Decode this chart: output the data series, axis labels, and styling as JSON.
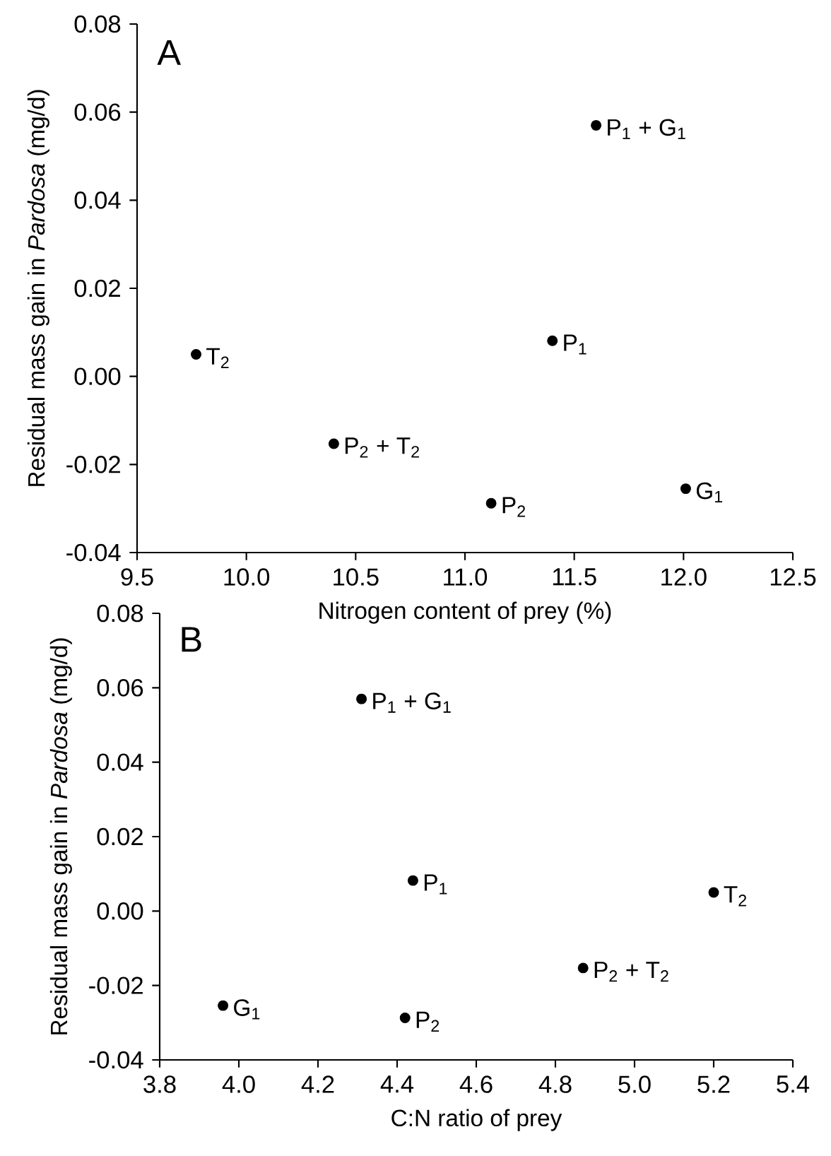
{
  "chart_data": [
    {
      "type": "scatter",
      "title": "A",
      "xlabel": "Nitrogen content of prey (%)",
      "ylabel": "Residual mass gain in *Pardosa* (mg/d)",
      "x": [
        9.77,
        10.4,
        11.12,
        11.4,
        11.6,
        12.01
      ],
      "series": [
        {
          "color": "#000000",
          "values": [
            0.005,
            -0.0153,
            -0.0288,
            0.0081,
            0.057,
            -0.0255
          ]
        }
      ],
      "marker": "circle",
      "grid": false,
      "legend": false,
      "xlim": [
        9.5,
        12.5
      ],
      "ylim": [
        -0.04,
        0.08
      ],
      "xticks": [
        {
          "value": 9.5,
          "label": "9.5"
        },
        {
          "value": 10.0,
          "label": "10.0"
        },
        {
          "value": 10.5,
          "label": "10.5"
        },
        {
          "value": 11.0,
          "label": "11.0"
        },
        {
          "value": 11.5,
          "label": "11.5"
        },
        {
          "value": 12.0,
          "label": "12.0"
        },
        {
          "value": 12.5,
          "label": "12.5"
        }
      ],
      "yticks": [
        {
          "value": -0.04,
          "label": "-0.04"
        },
        {
          "value": -0.02,
          "label": "-0.02"
        },
        {
          "value": 0.0,
          "label": "0.00"
        },
        {
          "value": 0.02,
          "label": "0.02"
        },
        {
          "value": 0.04,
          "label": "0.04"
        },
        {
          "value": 0.06,
          "label": "0.06"
        },
        {
          "value": 0.08,
          "label": "0.08"
        }
      ],
      "annotations": [
        {
          "text": "T$_{2}$",
          "x": 9.77,
          "y": 0.005
        },
        {
          "text": "P$_{2}$ + T$_{2}$",
          "x": 10.4,
          "y": -0.0153
        },
        {
          "text": "P$_{2}$",
          "x": 11.12,
          "y": -0.0288
        },
        {
          "text": "P$_{1}$",
          "x": 11.4,
          "y": 0.0081
        },
        {
          "text": "P$_{1}$ + G$_{1}$",
          "x": 11.6,
          "y": 0.057
        },
        {
          "text": "G$_{1}$",
          "x": 12.01,
          "y": -0.0255
        }
      ]
    },
    {
      "type": "scatter",
      "title": "B",
      "xlabel": "C:N ratio of prey",
      "ylabel": "Residual mass gain in *Pardosa* (mg/d)",
      "x": [
        5.2,
        4.87,
        4.42,
        4.44,
        4.31,
        3.96
      ],
      "series": [
        {
          "color": "#000000",
          "values": [
            0.005,
            -0.0153,
            -0.0287,
            0.0082,
            0.057,
            -0.0254
          ]
        }
      ],
      "marker": "circle",
      "grid": false,
      "legend": false,
      "xlim": [
        3.8,
        5.4
      ],
      "ylim": [
        -0.04,
        0.08
      ],
      "xticks": [
        {
          "value": 3.8,
          "label": "3.8"
        },
        {
          "value": 4.0,
          "label": "4.0"
        },
        {
          "value": 4.2,
          "label": "4.2"
        },
        {
          "value": 4.4,
          "label": "4.4"
        },
        {
          "value": 4.6,
          "label": "4.6"
        },
        {
          "value": 4.8,
          "label": "4.8"
        },
        {
          "value": 5.0,
          "label": "5.0"
        },
        {
          "value": 5.2,
          "label": "5.2"
        },
        {
          "value": 5.4,
          "label": "5.4"
        }
      ],
      "yticks": [
        {
          "value": -0.04,
          "label": "-0.04"
        },
        {
          "value": -0.02,
          "label": "-0.02"
        },
        {
          "value": 0.0,
          "label": "0.00"
        },
        {
          "value": 0.02,
          "label": "0.02"
        },
        {
          "value": 0.04,
          "label": "0.04"
        },
        {
          "value": 0.06,
          "label": "0.06"
        },
        {
          "value": 0.08,
          "label": "0.08"
        }
      ],
      "annotations": [
        {
          "text": "T$_{2}$",
          "x": 5.2,
          "y": 0.005
        },
        {
          "text": "P$_{2}$ + T$_{2}$",
          "x": 4.87,
          "y": -0.0153
        },
        {
          "text": "P$_{2}$",
          "x": 4.42,
          "y": -0.0287
        },
        {
          "text": "P$_{1}$",
          "x": 4.44,
          "y": 0.0082
        },
        {
          "text": "P$_{1}$ + G$_{1}$",
          "x": 4.31,
          "y": 0.057
        },
        {
          "text": "G$_{1}$",
          "x": 3.96,
          "y": -0.0254
        }
      ]
    }
  ]
}
